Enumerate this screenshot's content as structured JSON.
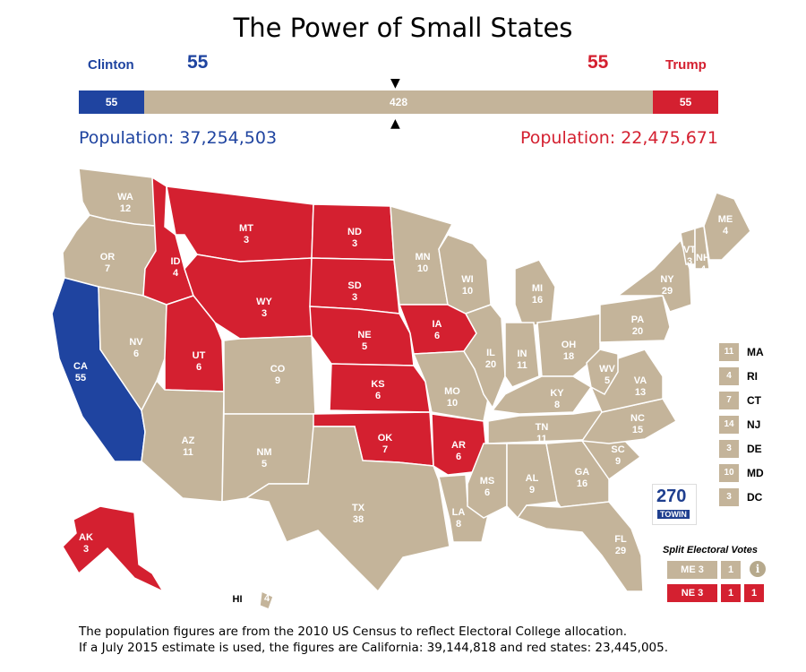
{
  "title": "The Power of Small States",
  "colors": {
    "dem": "#1f44a0",
    "rep": "#d42030",
    "tossup": "#c4b49a"
  },
  "header": {
    "clinton": {
      "name": "Clinton",
      "votes": "55"
    },
    "trump": {
      "name": "Trump",
      "votes": "55"
    },
    "bar": {
      "dem": "55",
      "tossup": "428",
      "rep": "55"
    },
    "bar_values": {
      "dem": 55,
      "tossup": 428,
      "rep": 55
    },
    "dem_population": "Population: 37,254,503",
    "rep_population": "Population: 22,475,671"
  },
  "states": [
    {
      "abbr": "WA",
      "ev": "12",
      "party": "tossup"
    },
    {
      "abbr": "OR",
      "ev": "7",
      "party": "tossup"
    },
    {
      "abbr": "CA",
      "ev": "55",
      "party": "dem"
    },
    {
      "abbr": "NV",
      "ev": "6",
      "party": "tossup"
    },
    {
      "abbr": "ID",
      "ev": "4",
      "party": "rep"
    },
    {
      "abbr": "MT",
      "ev": "3",
      "party": "rep"
    },
    {
      "abbr": "WY",
      "ev": "3",
      "party": "rep"
    },
    {
      "abbr": "UT",
      "ev": "6",
      "party": "rep"
    },
    {
      "abbr": "AZ",
      "ev": "11",
      "party": "tossup"
    },
    {
      "abbr": "CO",
      "ev": "9",
      "party": "tossup"
    },
    {
      "abbr": "NM",
      "ev": "5",
      "party": "tossup"
    },
    {
      "abbr": "ND",
      "ev": "3",
      "party": "rep"
    },
    {
      "abbr": "SD",
      "ev": "3",
      "party": "rep"
    },
    {
      "abbr": "NE",
      "ev": "5",
      "party": "rep"
    },
    {
      "abbr": "KS",
      "ev": "6",
      "party": "rep"
    },
    {
      "abbr": "OK",
      "ev": "7",
      "party": "rep"
    },
    {
      "abbr": "TX",
      "ev": "38",
      "party": "tossup"
    },
    {
      "abbr": "MN",
      "ev": "10",
      "party": "tossup"
    },
    {
      "abbr": "IA",
      "ev": "6",
      "party": "rep"
    },
    {
      "abbr": "MO",
      "ev": "10",
      "party": "tossup"
    },
    {
      "abbr": "AR",
      "ev": "6",
      "party": "rep"
    },
    {
      "abbr": "LA",
      "ev": "8",
      "party": "tossup"
    },
    {
      "abbr": "WI",
      "ev": "10",
      "party": "tossup"
    },
    {
      "abbr": "IL",
      "ev": "20",
      "party": "tossup"
    },
    {
      "abbr": "MI",
      "ev": "16",
      "party": "tossup"
    },
    {
      "abbr": "IN",
      "ev": "11",
      "party": "tossup"
    },
    {
      "abbr": "OH",
      "ev": "18",
      "party": "tossup"
    },
    {
      "abbr": "KY",
      "ev": "8",
      "party": "tossup"
    },
    {
      "abbr": "TN",
      "ev": "11",
      "party": "tossup"
    },
    {
      "abbr": "MS",
      "ev": "6",
      "party": "tossup"
    },
    {
      "abbr": "AL",
      "ev": "9",
      "party": "tossup"
    },
    {
      "abbr": "GA",
      "ev": "16",
      "party": "tossup"
    },
    {
      "abbr": "FL",
      "ev": "29",
      "party": "tossup"
    },
    {
      "abbr": "SC",
      "ev": "9",
      "party": "tossup"
    },
    {
      "abbr": "NC",
      "ev": "15",
      "party": "tossup"
    },
    {
      "abbr": "VA",
      "ev": "13",
      "party": "tossup"
    },
    {
      "abbr": "WV",
      "ev": "5",
      "party": "tossup"
    },
    {
      "abbr": "PA",
      "ev": "20",
      "party": "tossup"
    },
    {
      "abbr": "NY",
      "ev": "29",
      "party": "tossup"
    },
    {
      "abbr": "VT",
      "ev": "3",
      "party": "tossup"
    },
    {
      "abbr": "NH",
      "ev": "4",
      "party": "tossup"
    },
    {
      "abbr": "ME",
      "ev": "4",
      "party": "tossup"
    },
    {
      "abbr": "AK",
      "ev": "3",
      "party": "rep"
    },
    {
      "abbr": "HI",
      "ev": "4",
      "party": "tossup"
    }
  ],
  "small_states": [
    {
      "ev": "11",
      "abbr": "MA"
    },
    {
      "ev": "4",
      "abbr": "RI"
    },
    {
      "ev": "7",
      "abbr": "CT"
    },
    {
      "ev": "14",
      "abbr": "NJ"
    },
    {
      "ev": "3",
      "abbr": "DE"
    },
    {
      "ev": "10",
      "abbr": "MD"
    },
    {
      "ev": "3",
      "abbr": "DC"
    }
  ],
  "logo": {
    "number": "270",
    "text": "WIN",
    "prefix": "TO"
  },
  "split": {
    "title": "Split Electoral Votes",
    "me": {
      "label": "ME 3",
      "votes": [
        "1"
      ]
    },
    "ne": {
      "label": "NE 3",
      "votes": [
        "1",
        "1"
      ]
    }
  },
  "footnote": {
    "line1": "The population figures are from the 2010 US Census to reflect Electoral College allocation.",
    "line2": "If a July 2015 estimate is used, the figures are California: 39,144,818 and red states: 23,445,005."
  }
}
